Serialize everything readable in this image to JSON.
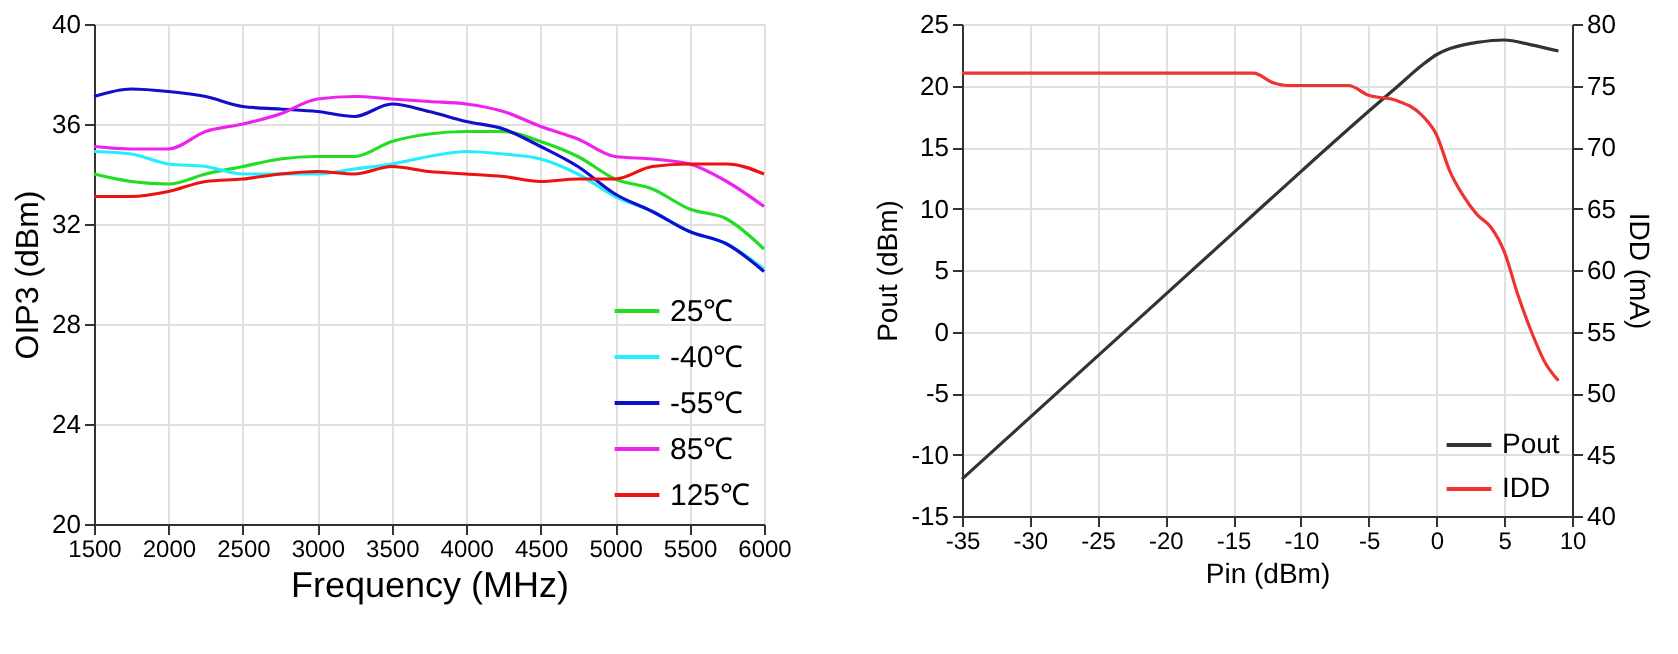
{
  "chart_data": [
    {
      "type": "line",
      "xlabel": "Frequency  (MHz)",
      "ylabel": "OIP3 (dBm)",
      "xlim": [
        1500,
        6000
      ],
      "xticks": [
        1500,
        2000,
        2500,
        3000,
        3500,
        4000,
        4500,
        5000,
        5500,
        6000
      ],
      "ylim": [
        20,
        40
      ],
      "yticks": [
        20,
        24,
        28,
        32,
        36,
        40
      ],
      "grid": true,
      "legend": "bottom right",
      "x": [
        1500,
        1750,
        2000,
        2250,
        2500,
        2750,
        3000,
        3250,
        3500,
        3750,
        4000,
        4250,
        4500,
        4750,
        5000,
        5250,
        5500,
        5750,
        6000
      ],
      "series": [
        {
          "name": "25℃",
          "color": "#22dd22",
          "values": [
            34.0,
            33.7,
            33.6,
            34.0,
            34.3,
            34.6,
            34.7,
            34.7,
            35.3,
            35.6,
            35.7,
            35.7,
            35.3,
            34.7,
            33.8,
            33.4,
            32.6,
            32.2,
            31.0
          ]
        },
        {
          "name": "-40℃",
          "color": "#22eeff",
          "values": [
            34.9,
            34.8,
            34.4,
            34.3,
            34.0,
            34.0,
            34.0,
            34.2,
            34.4,
            34.7,
            34.9,
            34.8,
            34.6,
            34.0,
            33.1,
            32.5,
            31.7,
            31.2,
            30.2
          ]
        },
        {
          "name": "-55℃",
          "color": "#1010cc",
          "values": [
            37.1,
            37.4,
            37.3,
            37.1,
            36.7,
            36.6,
            36.5,
            36.3,
            36.8,
            36.5,
            36.1,
            35.8,
            35.1,
            34.3,
            33.2,
            32.5,
            31.7,
            31.2,
            30.1
          ]
        },
        {
          "name": "85℃",
          "color": "#ee22ee",
          "values": [
            35.1,
            35.0,
            35.0,
            35.7,
            36.0,
            36.4,
            37.0,
            37.1,
            37.0,
            36.9,
            36.8,
            36.5,
            35.9,
            35.4,
            34.7,
            34.6,
            34.4,
            33.7,
            32.7
          ]
        },
        {
          "name": "125℃",
          "color": "#ee1111",
          "values": [
            33.1,
            33.1,
            33.3,
            33.7,
            33.8,
            34.0,
            34.1,
            34.0,
            34.3,
            34.1,
            34.0,
            33.9,
            33.7,
            33.8,
            33.8,
            34.3,
            34.4,
            34.4,
            34.0
          ]
        }
      ]
    },
    {
      "type": "line",
      "xlabel": "Pin (dBm)",
      "ylabel": "Pout (dBm)",
      "y2label": "IDD (mA)",
      "xlim": [
        -35,
        10
      ],
      "xticks": [
        -35,
        -30,
        -25,
        -20,
        -15,
        -10,
        -5,
        0,
        5,
        10
      ],
      "ylim": [
        -15,
        25
      ],
      "yticks": [
        -15,
        -10,
        -5,
        0,
        5,
        10,
        15,
        20,
        25
      ],
      "y2lim": [
        40,
        80
      ],
      "y2ticks": [
        40,
        45,
        50,
        55,
        60,
        65,
        70,
        75,
        80
      ],
      "grid": true,
      "legend": "bottom right",
      "series": [
        {
          "name": "Pout",
          "color": "#333333",
          "x": [
            -35,
            -30,
            -25,
            -20,
            -15,
            -10,
            -5,
            -3,
            -1,
            0,
            1,
            2,
            3,
            5,
            7,
            9
          ],
          "values": [
            -12,
            -7,
            -2,
            3,
            8,
            13,
            17.9,
            19.8,
            21.7,
            22.5,
            23.0,
            23.3,
            23.5,
            23.7,
            23.3,
            22.8
          ]
        },
        {
          "name": "IDD",
          "color": "#ee3333",
          "axis": "y2",
          "x": [
            -35,
            -13.5,
            -12,
            -11,
            -6.5,
            -5,
            -3,
            -1,
            0,
            1,
            2,
            3,
            4,
            5,
            6,
            7,
            8,
            9
          ],
          "values": [
            76,
            76,
            75.2,
            75,
            75,
            74.2,
            73.8,
            72.5,
            71,
            68,
            66,
            64.5,
            63.5,
            61.5,
            58,
            55,
            52.5,
            51
          ]
        }
      ]
    }
  ]
}
